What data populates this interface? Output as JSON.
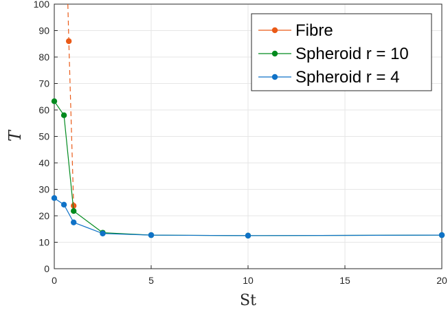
{
  "chart_data": {
    "type": "line",
    "title": "",
    "xlabel": "St",
    "ylabel": "T",
    "xlim": [
      0,
      20
    ],
    "ylim": [
      0,
      100
    ],
    "x_ticks": [
      0,
      5,
      10,
      15,
      20
    ],
    "y_ticks": [
      0,
      10,
      20,
      30,
      40,
      50,
      60,
      70,
      80,
      90,
      100
    ],
    "grid": true,
    "legend_position": "top-right",
    "series": [
      {
        "name": "Fibre",
        "color": "#ea5a17",
        "x": [
          0.75,
          1.0
        ],
        "y": [
          86,
          23.8
        ],
        "dashed_extension": {
          "x": [
            0.7,
            0.75,
            1.0
          ],
          "y": [
            100,
            86,
            23.8
          ]
        }
      },
      {
        "name": "Spheroid r = 10",
        "color": "#008a1e",
        "x": [
          0,
          0.5,
          1.0,
          2.5,
          5,
          10,
          20
        ],
        "y": [
          63.3,
          58,
          21.8,
          13.6,
          12.7,
          12.5,
          12.7
        ]
      },
      {
        "name": "Spheroid r = 4",
        "color": "#0f72c7",
        "x": [
          0,
          0.5,
          1.0,
          2.5,
          5,
          10,
          20
        ],
        "y": [
          26.7,
          24.2,
          17.5,
          13.3,
          12.7,
          12.5,
          12.7
        ]
      }
    ]
  }
}
